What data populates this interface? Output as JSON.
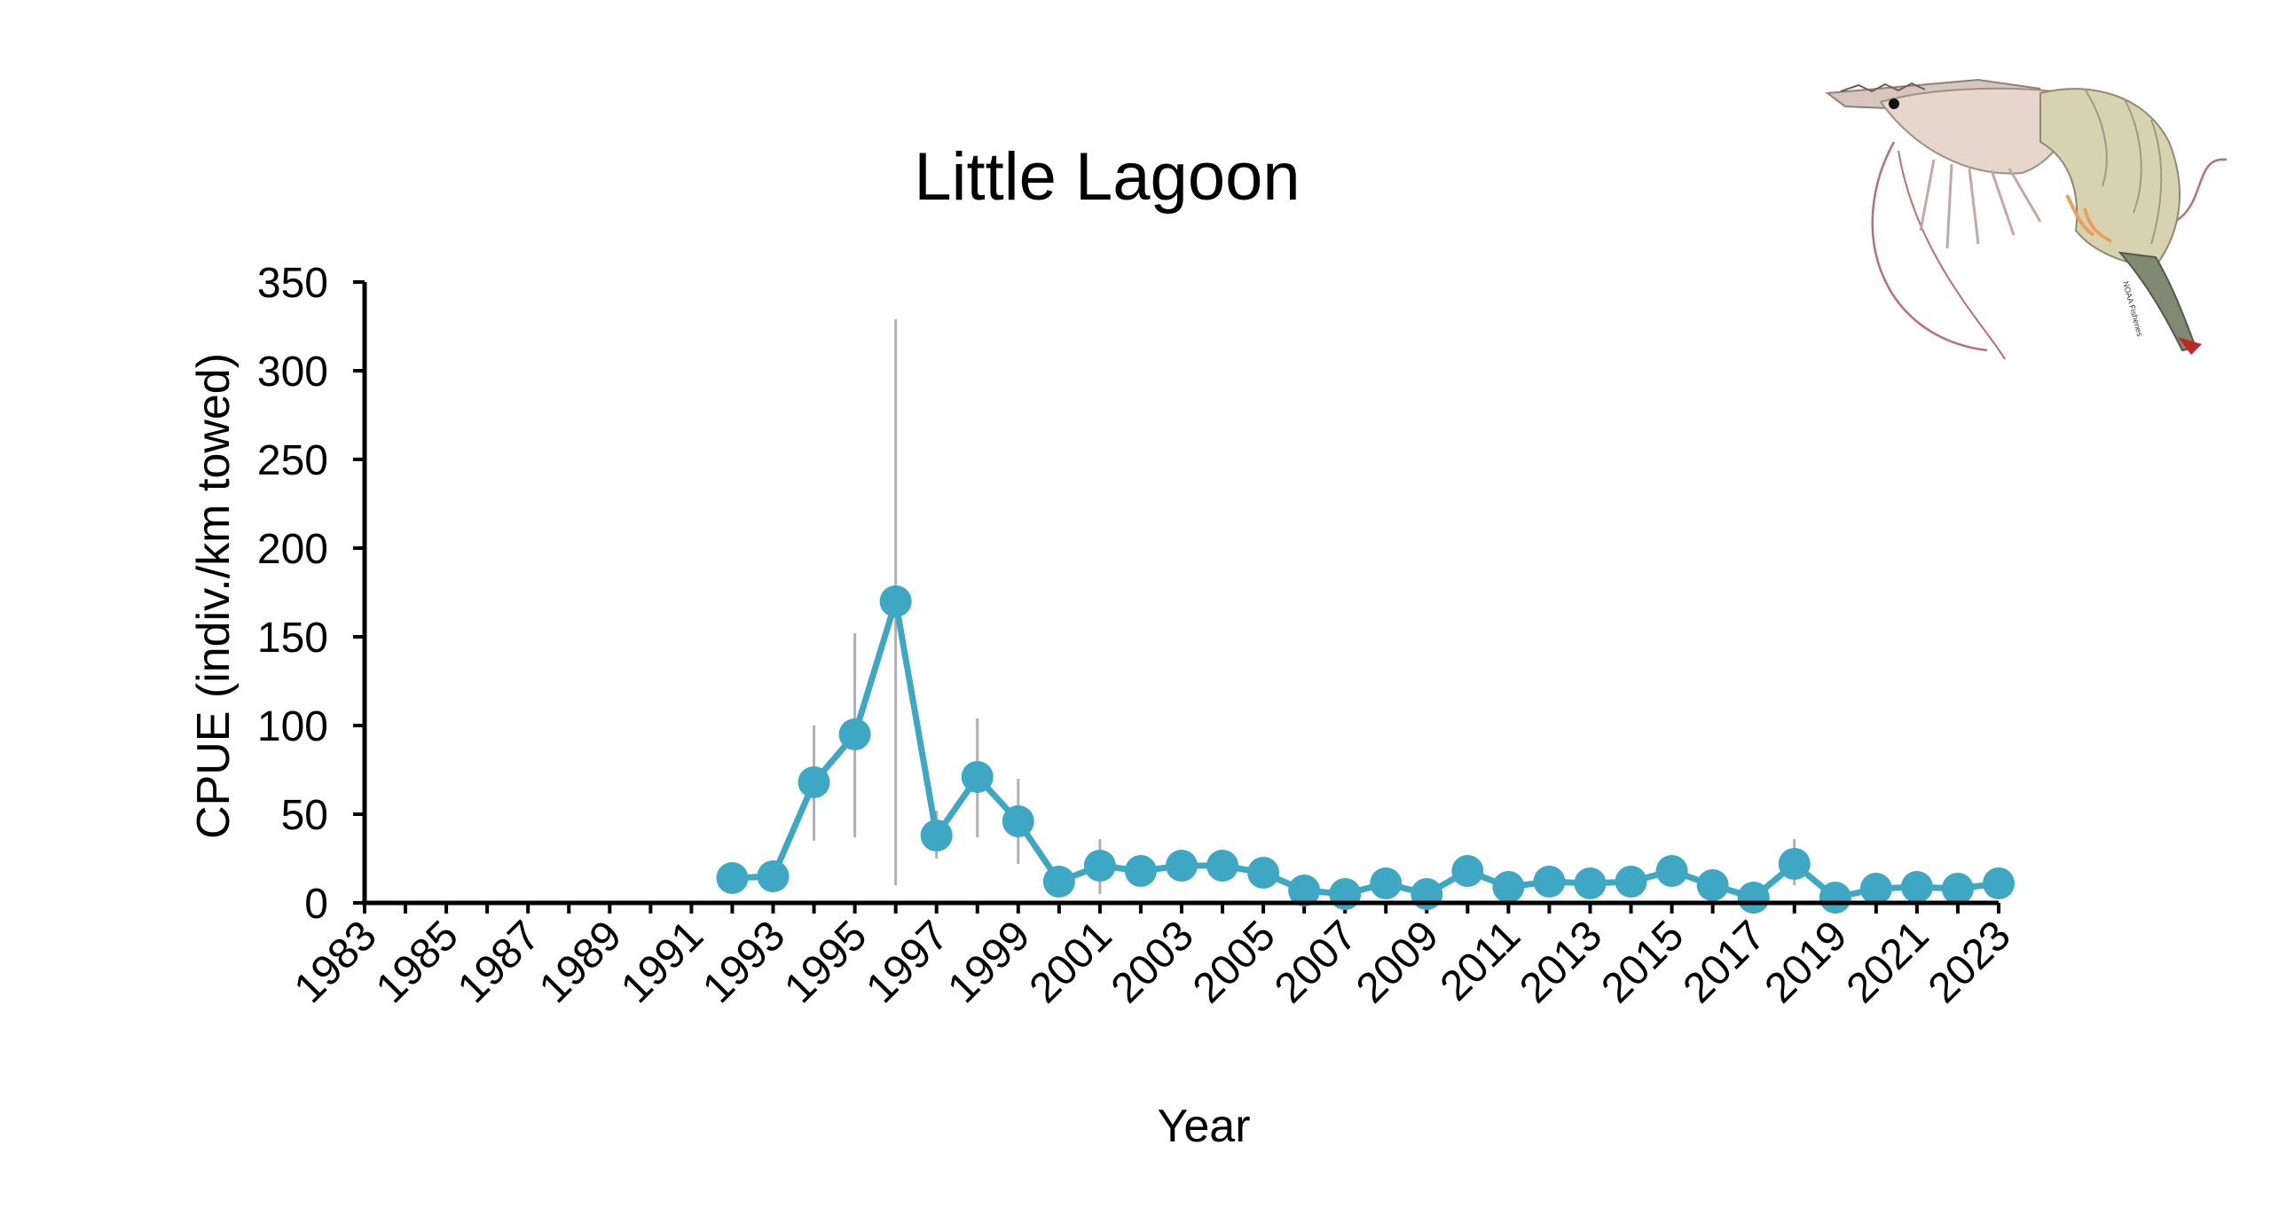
{
  "chart_data": {
    "type": "line",
    "title": "Little Lagoon",
    "xlabel": "Year",
    "ylabel": "CPUE (indiv./km towed)",
    "ylim": [
      0,
      350
    ],
    "yticks": [
      0,
      50,
      100,
      150,
      200,
      250,
      300,
      350
    ],
    "xlim": [
      1983,
      2023
    ],
    "xtick_labels": [
      "1983",
      "1985",
      "1987",
      "1989",
      "1991",
      "1993",
      "1995",
      "1997",
      "1999",
      "2001",
      "2003",
      "2005",
      "2007",
      "2009",
      "2011",
      "2013",
      "2015",
      "2017",
      "2019",
      "2021",
      "2023"
    ],
    "grid": false,
    "legend": "none",
    "colors": {
      "series": "#3ea7c3",
      "error_bar": "#b0b0b0",
      "axis": "#000000"
    },
    "series": [
      {
        "x": [
          1992,
          1993,
          1994,
          1995,
          1996,
          1997,
          1998,
          1999,
          2000,
          2001,
          2002,
          2003,
          2004,
          2005,
          2006,
          2007,
          2008,
          2009,
          2010,
          2011,
          2012,
          2013,
          2014,
          2015,
          2016,
          2017,
          2018,
          2019,
          2020,
          2021,
          2022,
          2023
        ],
        "y": [
          14,
          15,
          68,
          95,
          170,
          38,
          71,
          46,
          12,
          21,
          18,
          21,
          21,
          17,
          7,
          5,
          11,
          5,
          18,
          9,
          12,
          11,
          12,
          18,
          10,
          3,
          22,
          3,
          8,
          9,
          8,
          11
        ],
        "error_low": [
          null,
          null,
          35,
          37,
          10,
          25,
          37,
          22,
          null,
          5,
          null,
          null,
          null,
          null,
          null,
          null,
          null,
          null,
          null,
          null,
          null,
          null,
          null,
          null,
          null,
          null,
          10,
          null,
          null,
          null,
          null,
          null
        ],
        "error_high": [
          null,
          null,
          100,
          152,
          329,
          52,
          104,
          70,
          null,
          36,
          null,
          null,
          null,
          null,
          null,
          null,
          null,
          null,
          null,
          null,
          null,
          null,
          null,
          null,
          null,
          null,
          36,
          null,
          null,
          null,
          null,
          null
        ]
      }
    ]
  },
  "image": {
    "name": "white-shrimp-illustration",
    "credit": "NOAA Fisheries"
  }
}
